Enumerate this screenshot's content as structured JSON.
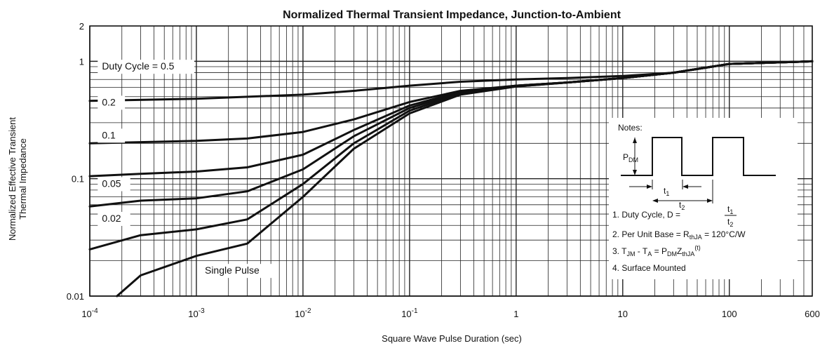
{
  "chart_data": {
    "type": "line",
    "title": "Normalized Thermal Transient Impedance, Junction-to-Ambient",
    "xlabel": "Square Wave Pulse Duration (sec)",
    "ylabel_lines": [
      "Normalized Effective Transient",
      "Thermal Impedance"
    ],
    "x_scale": "log",
    "y_scale": "log",
    "xlim": [
      0.0001,
      600
    ],
    "ylim": [
      0.01,
      2
    ],
    "grid": true,
    "x_ticks": [
      {
        "value": 0.0001,
        "base": "10",
        "exp": "-4"
      },
      {
        "value": 0.001,
        "base": "10",
        "exp": "-3"
      },
      {
        "value": 0.01,
        "base": "10",
        "exp": "-2"
      },
      {
        "value": 0.1,
        "base": "10",
        "exp": "-1"
      },
      {
        "value": 1,
        "base": "1",
        "exp": ""
      },
      {
        "value": 10,
        "base": "10",
        "exp": ""
      },
      {
        "value": 100,
        "base": "100",
        "exp": ""
      },
      {
        "value": 600,
        "base": "600",
        "exp": ""
      }
    ],
    "y_ticks": [
      {
        "value": 0.01,
        "label": "0.01"
      },
      {
        "value": 0.1,
        "label": "0.1"
      },
      {
        "value": 1,
        "label": "1"
      },
      {
        "value": 2,
        "label": "2"
      }
    ],
    "series": [
      {
        "name": "Duty Cycle = 0.5",
        "label_at": [
          0.00013,
          0.85
        ],
        "x": [
          0.0001,
          0.001,
          0.01,
          0.03,
          0.1,
          0.3,
          1,
          3,
          10,
          30,
          100,
          600
        ],
        "y": [
          0.46,
          0.48,
          0.52,
          0.56,
          0.62,
          0.67,
          0.7,
          0.72,
          0.75,
          0.8,
          0.95,
          1.0
        ]
      },
      {
        "name": "0.2",
        "label_at": [
          0.00013,
          0.42
        ],
        "x": [
          0.0001,
          0.001,
          0.003,
          0.01,
          0.03,
          0.1,
          0.3,
          1,
          3,
          10,
          30,
          100,
          600
        ],
        "y": [
          0.2,
          0.21,
          0.22,
          0.25,
          0.32,
          0.45,
          0.56,
          0.62,
          0.66,
          0.72,
          0.8,
          0.95,
          1.0
        ]
      },
      {
        "name": "0.1",
        "label_at": [
          0.00013,
          0.22
        ],
        "x": [
          0.0001,
          0.0003,
          0.001,
          0.003,
          0.01,
          0.03,
          0.1,
          0.3,
          1,
          3,
          10,
          30,
          100,
          600
        ],
        "y": [
          0.105,
          0.11,
          0.115,
          0.125,
          0.16,
          0.26,
          0.42,
          0.55,
          0.62,
          0.66,
          0.72,
          0.8,
          0.95,
          1.0
        ]
      },
      {
        "name": "0.05",
        "label_at": [
          0.00013,
          0.085
        ],
        "x": [
          0.0001,
          0.0003,
          0.001,
          0.003,
          0.01,
          0.03,
          0.1,
          0.3,
          1,
          3,
          10,
          30,
          100,
          600
        ],
        "y": [
          0.058,
          0.065,
          0.068,
          0.078,
          0.12,
          0.23,
          0.4,
          0.54,
          0.62,
          0.66,
          0.72,
          0.8,
          0.95,
          1.0
        ]
      },
      {
        "name": "0.02",
        "label_at": [
          0.00013,
          0.043
        ],
        "x": [
          0.0001,
          0.0003,
          0.001,
          0.003,
          0.01,
          0.03,
          0.1,
          0.3,
          1,
          3,
          10,
          30,
          100,
          600
        ],
        "y": [
          0.025,
          0.033,
          0.037,
          0.045,
          0.09,
          0.2,
          0.38,
          0.53,
          0.61,
          0.66,
          0.72,
          0.8,
          0.95,
          1.0
        ]
      },
      {
        "name": "Single Pulse",
        "label_at": [
          0.0012,
          0.0155
        ],
        "x": [
          0.00018,
          0.0003,
          0.001,
          0.003,
          0.01,
          0.03,
          0.1,
          0.3,
          1,
          3,
          10,
          30,
          100,
          600
        ],
        "y": [
          0.01,
          0.015,
          0.022,
          0.028,
          0.07,
          0.18,
          0.36,
          0.52,
          0.61,
          0.66,
          0.72,
          0.8,
          0.95,
          1.0
        ]
      }
    ],
    "notes": {
      "heading": "Notes:",
      "pdm": "P",
      "pdm_sub": "DM",
      "t1": "t",
      "t1_sub": "1",
      "t2": "t",
      "t2_sub": "2",
      "n1_prefix": "1. Duty Cycle, D =",
      "n1_num": "t",
      "n1_num_sub": "1",
      "n1_den": "t",
      "n1_den_sub": "2",
      "n2_prefix": "2. Per Unit Base = R",
      "n2_sub": "thJA",
      "n2_suffix": " = 120°C/W",
      "n3_a": "3. T",
      "n3_a_sub": "JM",
      "n3_b": " - T",
      "n3_b_sub": "A",
      "n3_c": " = P",
      "n3_c_sub": "DM",
      "n3_d": "Z",
      "n3_d_sub": "thJA",
      "n3_sup": "(t)",
      "n4": "4. Surface Mounted"
    }
  }
}
